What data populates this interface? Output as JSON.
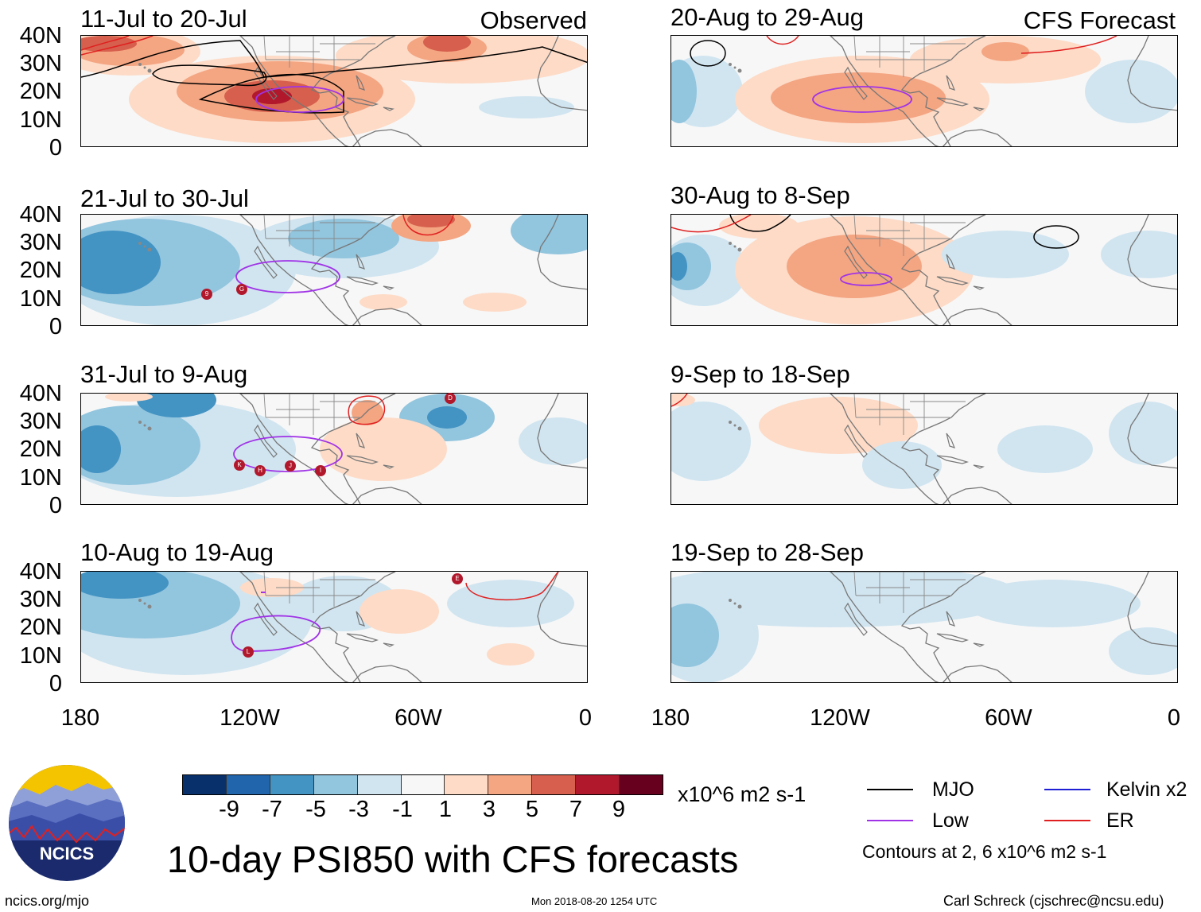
{
  "header": {
    "left_label": "Observed",
    "right_label": "CFS Forecast"
  },
  "panels": {
    "left": [
      {
        "title": "11-Jul to 20-Jul"
      },
      {
        "title": "21-Jul to 30-Jul"
      },
      {
        "title": "31-Jul to 9-Aug"
      },
      {
        "title": "10-Aug to 19-Aug"
      }
    ],
    "right": [
      {
        "title": "20-Aug to 29-Aug"
      },
      {
        "title": "30-Aug to 8-Sep"
      },
      {
        "title": "9-Sep to 18-Sep"
      },
      {
        "title": "19-Sep to 28-Sep"
      }
    ]
  },
  "axes": {
    "y_labels": [
      "40N",
      "30N",
      "20N",
      "10N",
      "0"
    ],
    "x_labels": [
      "180",
      "120W",
      "60W",
      "0"
    ]
  },
  "storms": {
    "p2": [
      "9",
      "G"
    ],
    "p3": [
      "D",
      "K",
      "H",
      "J",
      "I"
    ],
    "p4": [
      "E",
      "L"
    ]
  },
  "colorbar": {
    "ticks": [
      "-9",
      "-7",
      "-5",
      "-3",
      "-1",
      "1",
      "3",
      "5",
      "7",
      "9"
    ],
    "units": "x10^6 m2 s-1",
    "colors": [
      "#08306b",
      "#2166ac",
      "#4393c3",
      "#92c5de",
      "#d1e5f0",
      "#f7f7f7",
      "#fddbc7",
      "#f4a582",
      "#d6604d",
      "#b2182b",
      "#67001f"
    ]
  },
  "legend": {
    "items": [
      {
        "label": "MJO",
        "color": "#000000"
      },
      {
        "label": "Kelvin x2",
        "color": "#1f1fd6"
      },
      {
        "label": "Low",
        "color": "#a033e6"
      },
      {
        "label": "ER",
        "color": "#e02020"
      }
    ],
    "contours_note": "Contours at 2, 6 x10^6 m2 s-1"
  },
  "main_title": "10-day PSI850 with CFS forecasts",
  "logo_text": "NCICS",
  "footer": {
    "left": "ncics.org/mjo",
    "center": "Mon 2018-08-20 1254 UTC",
    "right": "Carl Schreck (cjschrec@ncsu.edu)"
  }
}
